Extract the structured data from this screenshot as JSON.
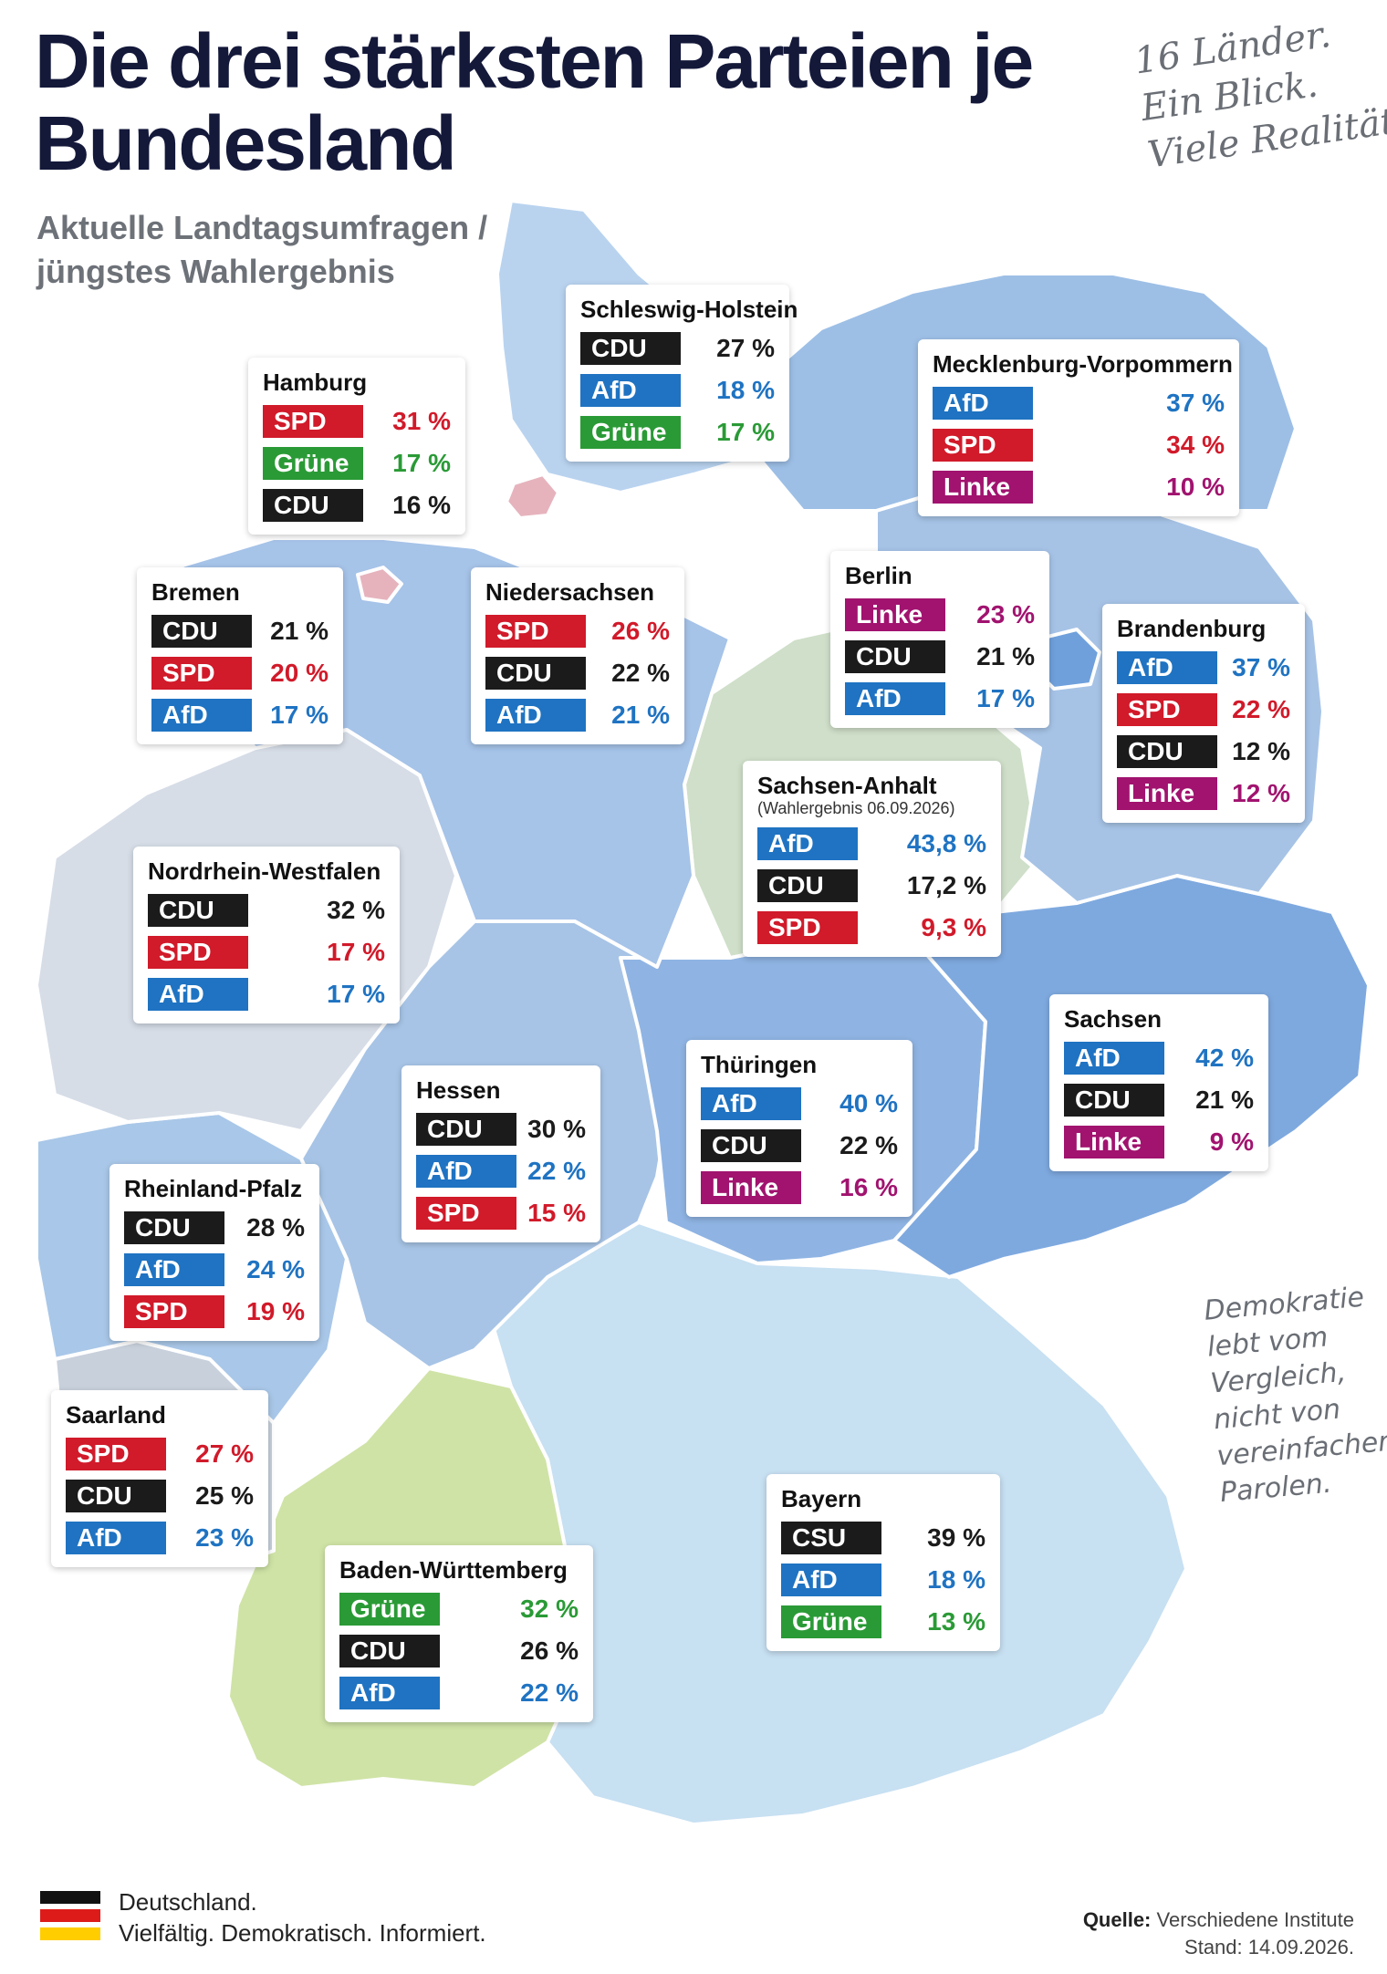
{
  "title": "Die drei stärksten Parteien je Bundesland",
  "subtitle": "Aktuelle Landtagsumfragen / jüngstes Wahlergebnis",
  "slogan": [
    "16 Länder.",
    "Ein Blick.",
    "Viele Realitäten."
  ],
  "quote": [
    "Demokratie",
    "lebt vom",
    "Vergleich,",
    "nicht von",
    "vereinfachenden",
    "Parolen."
  ],
  "party_colors": {
    "CDU": "#1b1b1b",
    "CSU": "#1b1b1b",
    "SPD": "#d11a2a",
    "AfD": "#1f73c2",
    "Grüne": "#2a9a36",
    "Linke": "#a1136f"
  },
  "states": [
    {
      "name": "Schleswig-Holstein",
      "results": [
        {
          "party": "CDU",
          "value": "27 %"
        },
        {
          "party": "AfD",
          "value": "18 %"
        },
        {
          "party": "Grüne",
          "value": "17 %"
        }
      ]
    },
    {
      "name": "Hamburg",
      "results": [
        {
          "party": "SPD",
          "value": "31 %"
        },
        {
          "party": "Grüne",
          "value": "17 %"
        },
        {
          "party": "CDU",
          "value": "16 %"
        }
      ]
    },
    {
      "name": "Mecklenburg-Vorpommern",
      "results": [
        {
          "party": "AfD",
          "value": "37 %"
        },
        {
          "party": "SPD",
          "value": "34 %"
        },
        {
          "party": "Linke",
          "value": "10 %"
        }
      ]
    },
    {
      "name": "Bremen",
      "results": [
        {
          "party": "CDU",
          "value": "21 %"
        },
        {
          "party": "SPD",
          "value": "20 %"
        },
        {
          "party": "AfD",
          "value": "17 %"
        }
      ]
    },
    {
      "name": "Niedersachsen",
      "results": [
        {
          "party": "SPD",
          "value": "26 %"
        },
        {
          "party": "CDU",
          "value": "22 %"
        },
        {
          "party": "AfD",
          "value": "21 %"
        }
      ]
    },
    {
      "name": "Berlin",
      "results": [
        {
          "party": "Linke",
          "value": "23 %"
        },
        {
          "party": "CDU",
          "value": "21 %"
        },
        {
          "party": "AfD",
          "value": "17 %"
        }
      ]
    },
    {
      "name": "Brandenburg",
      "results": [
        {
          "party": "AfD",
          "value": "37 %"
        },
        {
          "party": "SPD",
          "value": "22 %"
        },
        {
          "party": "CDU",
          "value": "12 %"
        },
        {
          "party": "Linke",
          "value": "12 %"
        }
      ]
    },
    {
      "name": "Sachsen-Anhalt",
      "note": "(Wahlergebnis 06.09.2026)",
      "results": [
        {
          "party": "AfD",
          "value": "43,8 %"
        },
        {
          "party": "CDU",
          "value": "17,2 %"
        },
        {
          "party": "SPD",
          "value": "9,3 %"
        }
      ]
    },
    {
      "name": "Nordrhein-Westfalen",
      "results": [
        {
          "party": "CDU",
          "value": "32 %"
        },
        {
          "party": "SPD",
          "value": "17 %"
        },
        {
          "party": "AfD",
          "value": "17 %"
        }
      ]
    },
    {
      "name": "Sachsen",
      "results": [
        {
          "party": "AfD",
          "value": "42 %"
        },
        {
          "party": "CDU",
          "value": "21 %"
        },
        {
          "party": "Linke",
          "value": "9 %"
        }
      ]
    },
    {
      "name": "Thüringen",
      "results": [
        {
          "party": "AfD",
          "value": "40 %"
        },
        {
          "party": "CDU",
          "value": "22 %"
        },
        {
          "party": "Linke",
          "value": "16 %"
        }
      ]
    },
    {
      "name": "Hessen",
      "results": [
        {
          "party": "CDU",
          "value": "30 %"
        },
        {
          "party": "AfD",
          "value": "22 %"
        },
        {
          "party": "SPD",
          "value": "15 %"
        }
      ]
    },
    {
      "name": "Rheinland-Pfalz",
      "results": [
        {
          "party": "CDU",
          "value": "28 %"
        },
        {
          "party": "AfD",
          "value": "24 %"
        },
        {
          "party": "SPD",
          "value": "19 %"
        }
      ]
    },
    {
      "name": "Saarland",
      "results": [
        {
          "party": "SPD",
          "value": "27 %"
        },
        {
          "party": "CDU",
          "value": "25 %"
        },
        {
          "party": "AfD",
          "value": "23 %"
        }
      ]
    },
    {
      "name": "Bayern",
      "results": [
        {
          "party": "CSU",
          "value": "39 %"
        },
        {
          "party": "AfD",
          "value": "18 %"
        },
        {
          "party": "Grüne",
          "value": "13 %"
        }
      ]
    },
    {
      "name": "Baden-Württemberg",
      "results": [
        {
          "party": "Grüne",
          "value": "32 %"
        },
        {
          "party": "CDU",
          "value": "26 %"
        },
        {
          "party": "AfD",
          "value": "22 %"
        }
      ]
    }
  ],
  "footer": {
    "flag_colors": [
      "#111111",
      "#dd1c1a",
      "#ffcd00"
    ],
    "line1": "Deutschland.",
    "line2": "Vielfältig. Demokratisch. Informiert.",
    "source_label": "Quelle:",
    "source_value": "Verschiedene Institute",
    "stand_label": "Stand:",
    "stand_value": "14.09.2026."
  }
}
